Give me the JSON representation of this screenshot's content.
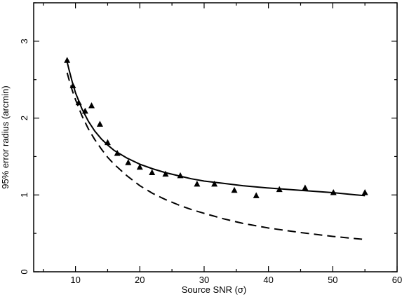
{
  "chart_data": {
    "type": "scatter",
    "title": "",
    "xlabel": "Source SNR (σ)",
    "ylabel": "95% error radius (arcmin)",
    "xlim": [
      3.5,
      60
    ],
    "ylim": [
      0,
      3.5
    ],
    "xticks": [
      10,
      20,
      30,
      40,
      50,
      60
    ],
    "yticks": [
      0,
      1,
      2,
      3
    ],
    "grid": false,
    "legend": "none",
    "series": [
      {
        "kind": "scatter",
        "marker": "triangle",
        "x": [
          8.7,
          9.6,
          10.5,
          11.5,
          12.5,
          13.8,
          15.0,
          16.5,
          18.2,
          20.0,
          21.9,
          24.0,
          26.3,
          28.9,
          31.6,
          34.7,
          38.1,
          41.7,
          45.7,
          50.1,
          55.0
        ],
        "y": [
          2.75,
          2.42,
          2.2,
          2.09,
          2.16,
          1.92,
          1.68,
          1.54,
          1.42,
          1.36,
          1.29,
          1.27,
          1.25,
          1.14,
          1.14,
          1.06,
          0.99,
          1.07,
          1.09,
          1.03,
          1.03
        ]
      },
      {
        "kind": "line",
        "style": "solid",
        "x": [
          8.7,
          9,
          9.5,
          10,
          11,
          12,
          13,
          14,
          15,
          16,
          18,
          20,
          22,
          24,
          26,
          28,
          30,
          33,
          36,
          40,
          45,
          50,
          55
        ],
        "y": [
          2.73,
          2.63,
          2.47,
          2.33,
          2.12,
          1.96,
          1.83,
          1.73,
          1.65,
          1.58,
          1.48,
          1.4,
          1.34,
          1.29,
          1.25,
          1.21,
          1.18,
          1.15,
          1.12,
          1.09,
          1.06,
          1.03,
          0.99
        ]
      },
      {
        "kind": "line",
        "style": "dashed",
        "x": [
          8.7,
          9,
          9.5,
          10,
          11,
          12,
          13,
          14,
          15,
          16,
          18,
          20,
          22,
          24,
          26,
          28,
          30,
          33,
          36,
          40,
          45,
          50,
          55
        ],
        "y": [
          2.59,
          2.5,
          2.36,
          2.24,
          2.03,
          1.86,
          1.72,
          1.6,
          1.49,
          1.4,
          1.25,
          1.12,
          1.02,
          0.94,
          0.87,
          0.81,
          0.76,
          0.69,
          0.63,
          0.57,
          0.51,
          0.46,
          0.42
        ]
      }
    ]
  }
}
